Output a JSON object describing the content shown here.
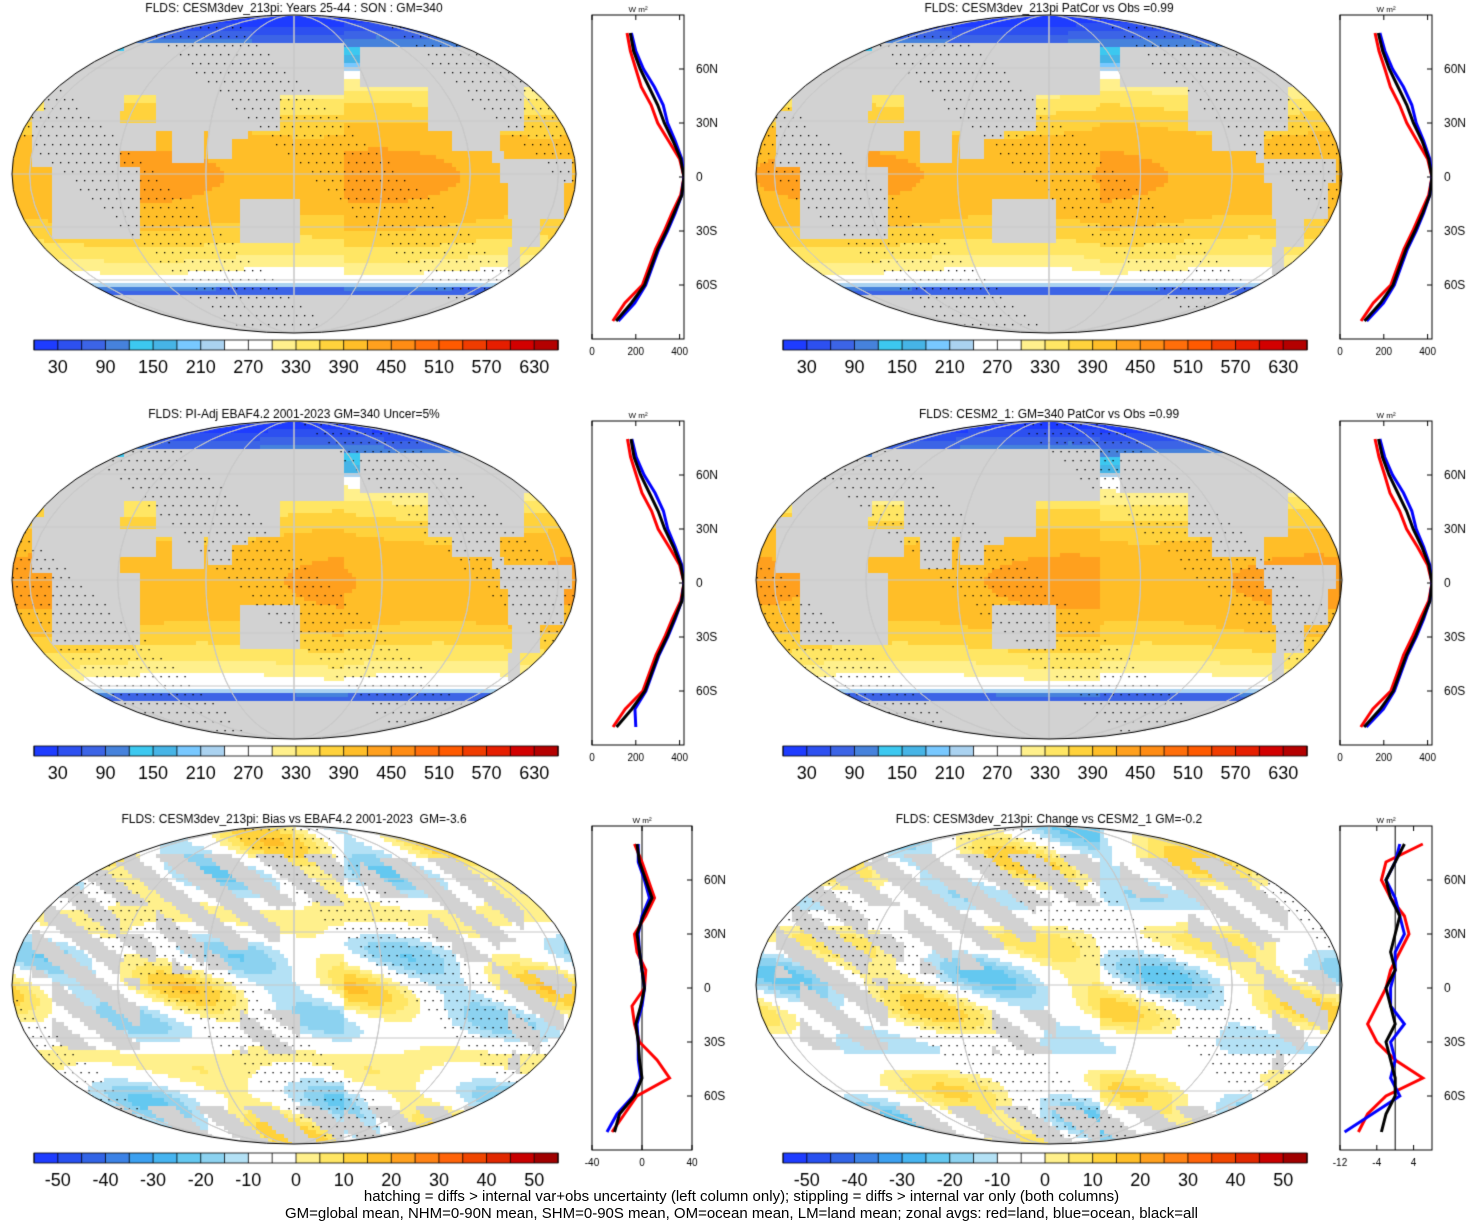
{
  "footer": {
    "line1": "hatching = diffs > internal var+obs uncertainty (left column only); stippling = diffs > internal var only (both columns)",
    "line2": "GM=global mean, NHM=0-90N mean, SHM=0-90S mean, OM=ocean mean, LM=land mean; zonal avgs: red=land, blue=ocean, black=all"
  },
  "colors": {
    "land": "#d2d2d2",
    "land_avg": "#ff0000",
    "ocean_avg": "#0000ff",
    "all_avg": "#000000",
    "coast": "#000000",
    "grid": "#c8c8c8"
  },
  "chart_data": [
    {
      "type": "heatmap",
      "title": "FLDS: CESM3dev_213pi: Years 25-44 : SON : GM=340",
      "field": "absolute",
      "colorbar": {
        "levels": [
          30,
          90,
          150,
          210,
          270,
          330,
          390,
          450,
          510,
          570,
          630
        ],
        "ticklabels": [
          "30",
          "90",
          "150",
          "210",
          "270",
          "330",
          "390",
          "450",
          "510",
          "570",
          "630"
        ]
      },
      "zonal": {
        "unit": "W m²",
        "xlim": [
          0,
          420
        ],
        "xticks": [
          0,
          200,
          400
        ],
        "ylabels": [
          "60N",
          "30N",
          "0",
          "30S",
          "60S"
        ],
        "lat": [
          80,
          70,
          60,
          50,
          40,
          30,
          20,
          10,
          0,
          -10,
          -20,
          -30,
          -40,
          -50,
          -60,
          -70,
          -80
        ],
        "all": [
          175,
          190,
          220,
          260,
          300,
          330,
          370,
          405,
          420,
          410,
          375,
          340,
          300,
          270,
          240,
          180,
          110
        ],
        "land": [
          160,
          175,
          200,
          225,
          270,
          300,
          350,
          400,
          420,
          405,
          365,
          330,
          290,
          260,
          230,
          150,
          95
        ],
        "ocean": [
          180,
          200,
          235,
          285,
          325,
          345,
          380,
          410,
          420,
          410,
          380,
          345,
          305,
          275,
          245,
          195,
          120
        ]
      }
    },
    {
      "type": "heatmap",
      "title": "FLDS: CESM3dev_213pi PatCor vs Obs =0.99",
      "field": "absolute",
      "colorbar": {
        "levels": [
          30,
          90,
          150,
          210,
          270,
          330,
          390,
          450,
          510,
          570,
          630
        ],
        "ticklabels": [
          "30",
          "90",
          "150",
          "210",
          "270",
          "330",
          "390",
          "450",
          "510",
          "570",
          "630"
        ]
      },
      "zonal": {
        "unit": "W m²",
        "xlim": [
          0,
          420
        ],
        "xticks": [
          0,
          200,
          400
        ],
        "ylabels": [
          "60N",
          "30N",
          "0",
          "30S",
          "60S"
        ],
        "lat": [
          80,
          70,
          60,
          50,
          40,
          30,
          20,
          10,
          0,
          -10,
          -20,
          -30,
          -40,
          -50,
          -60,
          -70,
          -80
        ],
        "all": [
          175,
          195,
          225,
          265,
          305,
          335,
          375,
          405,
          420,
          410,
          378,
          342,
          302,
          272,
          242,
          185,
          112
        ],
        "land": [
          160,
          178,
          205,
          230,
          272,
          305,
          352,
          400,
          420,
          405,
          368,
          332,
          292,
          262,
          232,
          152,
          96
        ],
        "ocean": [
          182,
          205,
          240,
          290,
          328,
          348,
          382,
          410,
          420,
          410,
          382,
          348,
          308,
          278,
          248,
          198,
          122
        ]
      }
    },
    {
      "type": "heatmap",
      "title": "FLDS: PI-Adj EBAF4.2 2001-2023 GM=340 Uncer=5%",
      "field": "absolute",
      "colorbar": {
        "levels": [
          30,
          90,
          150,
          210,
          270,
          330,
          390,
          450,
          510,
          570,
          630
        ],
        "ticklabels": [
          "30",
          "90",
          "150",
          "210",
          "270",
          "330",
          "390",
          "450",
          "510",
          "570",
          "630"
        ]
      },
      "zonal": {
        "unit": "W m²",
        "xlim": [
          0,
          420
        ],
        "xticks": [
          0,
          200,
          400
        ],
        "ylabels": [
          "60N",
          "30N",
          "0",
          "30S",
          "60S"
        ],
        "lat": [
          80,
          70,
          60,
          50,
          40,
          30,
          20,
          10,
          0,
          -10,
          -20,
          -30,
          -40,
          -50,
          -60,
          -70,
          -80
        ],
        "all": [
          178,
          192,
          222,
          262,
          302,
          332,
          372,
          405,
          420,
          410,
          376,
          342,
          302,
          272,
          242,
          182,
          112
        ],
        "land": [
          162,
          176,
          202,
          228,
          272,
          302,
          352,
          400,
          420,
          405,
          366,
          332,
          292,
          262,
          232,
          152,
          96
        ],
        "ocean": [
          182,
          202,
          238,
          288,
          326,
          346,
          380,
          410,
          420,
          410,
          380,
          346,
          306,
          276,
          246,
          196,
          200
        ]
      }
    },
    {
      "type": "heatmap",
      "title": "FLDS: CESM2_1: GM=340 PatCor vs Obs =0.99",
      "field": "absolute",
      "colorbar": {
        "levels": [
          30,
          90,
          150,
          210,
          270,
          330,
          390,
          450,
          510,
          570,
          630
        ],
        "ticklabels": [
          "30",
          "90",
          "150",
          "210",
          "270",
          "330",
          "390",
          "450",
          "510",
          "570",
          "630"
        ]
      },
      "zonal": {
        "unit": "W m²",
        "xlim": [
          0,
          420
        ],
        "xticks": [
          0,
          200,
          400
        ],
        "ylabels": [
          "60N",
          "30N",
          "0",
          "30S",
          "60S"
        ],
        "lat": [
          80,
          70,
          60,
          50,
          40,
          30,
          20,
          10,
          0,
          -10,
          -20,
          -30,
          -40,
          -50,
          -60,
          -70,
          -80
        ],
        "all": [
          176,
          194,
          224,
          264,
          304,
          334,
          374,
          406,
          420,
          410,
          377,
          343,
          303,
          273,
          243,
          184,
          110
        ],
        "land": [
          160,
          178,
          204,
          228,
          272,
          304,
          354,
          400,
          420,
          405,
          366,
          330,
          290,
          262,
          232,
          150,
          95
        ],
        "ocean": [
          182,
          204,
          240,
          290,
          328,
          348,
          382,
          410,
          420,
          410,
          382,
          348,
          308,
          278,
          248,
          198,
          120
        ]
      }
    },
    {
      "type": "heatmap",
      "title": "FLDS: CESM3dev_213pi: Bias vs EBAF4.2 2001-2023  GM=-3.6",
      "field": "difference",
      "colorbar": {
        "levels": [
          -50,
          -40,
          -30,
          -20,
          -10,
          0,
          10,
          20,
          30,
          40,
          50
        ],
        "ticklabels": [
          "-50",
          "-40",
          "-30",
          "-20",
          "-10",
          "0",
          "10",
          "20",
          "30",
          "40",
          "50"
        ]
      },
      "zonal": {
        "unit": "W m²",
        "xlim": [
          -40,
          40
        ],
        "xticks": [
          -40,
          0,
          40
        ],
        "ylabels": [
          "60N",
          "30N",
          "0",
          "30S",
          "60S"
        ],
        "lat": [
          80,
          70,
          60,
          50,
          40,
          30,
          20,
          10,
          0,
          -10,
          -20,
          -30,
          -40,
          -50,
          -60,
          -70,
          -80
        ],
        "all": [
          -4,
          -2,
          3,
          8,
          1,
          -4,
          -2,
          0,
          2,
          -1,
          -5,
          -3,
          -2,
          0,
          -6,
          -18,
          -22
        ],
        "land": [
          -6,
          0,
          5,
          10,
          3,
          -6,
          -4,
          3,
          2,
          -8,
          -6,
          -2,
          12,
          22,
          -4,
          -14,
          -24
        ],
        "ocean": [
          -3,
          -3,
          2,
          6,
          0,
          -3,
          -2,
          0,
          2,
          0,
          -4,
          -3,
          -3,
          -1,
          -7,
          -20,
          -28
        ]
      }
    },
    {
      "type": "heatmap",
      "title": "FLDS: CESM3dev_213pi: Change vs CESM2_1 GM=-0.2",
      "field": "difference",
      "colorbar": {
        "levels": [
          -50,
          -40,
          -30,
          -20,
          -10,
          0,
          10,
          20,
          30,
          40,
          50
        ],
        "ticklabels": [
          "-50",
          "-40",
          "-30",
          "-20",
          "-10",
          "0",
          "10",
          "20",
          "30",
          "40",
          "50"
        ]
      },
      "zonal": {
        "unit": "W m²",
        "xlim": [
          -12,
          8
        ],
        "xticks": [
          -12,
          -4,
          4
        ],
        "ylabels": [
          "60N",
          "30N",
          "0",
          "30S",
          "60S"
        ],
        "lat": [
          80,
          70,
          60,
          50,
          40,
          30,
          20,
          10,
          0,
          -10,
          -20,
          -30,
          -40,
          -50,
          -60,
          -70,
          -80
        ],
        "all": [
          2,
          0,
          -2,
          -1,
          1,
          0,
          -1,
          0,
          -2,
          -1,
          0,
          -2,
          -1,
          0,
          0,
          -2,
          -3
        ],
        "land": [
          6,
          -2,
          -3,
          -1,
          2,
          3,
          1,
          -1,
          -2,
          -4,
          -6,
          -4,
          0,
          6,
          -2,
          -6,
          -8
        ],
        "ocean": [
          1,
          0,
          -2,
          0,
          1,
          2,
          0,
          0,
          -1,
          -1,
          2,
          -1,
          0,
          -1,
          1,
          -5,
          -11
        ]
      }
    }
  ]
}
